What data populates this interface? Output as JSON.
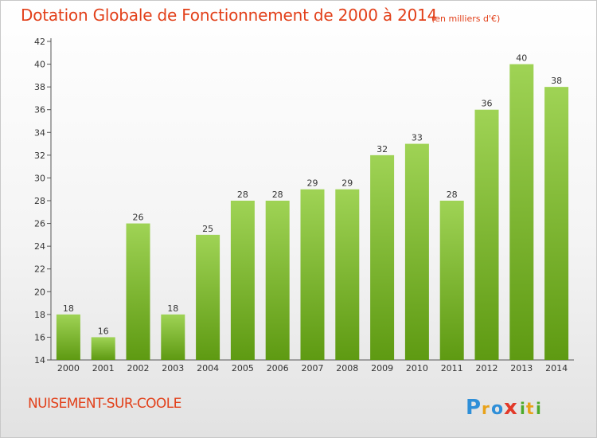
{
  "header": {
    "title": "Dotation Globale de Fonctionnement de 2000 à 2014",
    "unit": "(en milliers d'€)"
  },
  "footer": {
    "commune": "NUISEMENT-SUR-COOLE",
    "logo_letters": [
      "P",
      "r",
      "o",
      "x",
      "i",
      "t",
      "i"
    ]
  },
  "colors": {
    "title": "#e2401a",
    "bar_top": "#9fd355",
    "bar_bottom": "#5e9a12",
    "logo": [
      "#2f8fd8",
      "#e8a21a",
      "#2f8fd8",
      "#e23a2a",
      "#4daa2a",
      "#e8a21a",
      "#4daa2a"
    ]
  },
  "chart_data": {
    "type": "bar",
    "title": "Dotation Globale de Fonctionnement de 2000 à 2014",
    "subtitle": "(en milliers d'€)",
    "categories": [
      "2000",
      "2001",
      "2002",
      "2003",
      "2004",
      "2005",
      "2006",
      "2007",
      "2008",
      "2009",
      "2010",
      "2011",
      "2012",
      "2013",
      "2014"
    ],
    "values": [
      18,
      16,
      26,
      18,
      25,
      28,
      28,
      29,
      29,
      32,
      33,
      28,
      36,
      40,
      38
    ],
    "ylim": [
      14,
      42
    ],
    "yticks": [
      14,
      16,
      18,
      20,
      22,
      24,
      26,
      28,
      30,
      32,
      34,
      36,
      38,
      40,
      42
    ],
    "grid": false,
    "legend": "none"
  }
}
